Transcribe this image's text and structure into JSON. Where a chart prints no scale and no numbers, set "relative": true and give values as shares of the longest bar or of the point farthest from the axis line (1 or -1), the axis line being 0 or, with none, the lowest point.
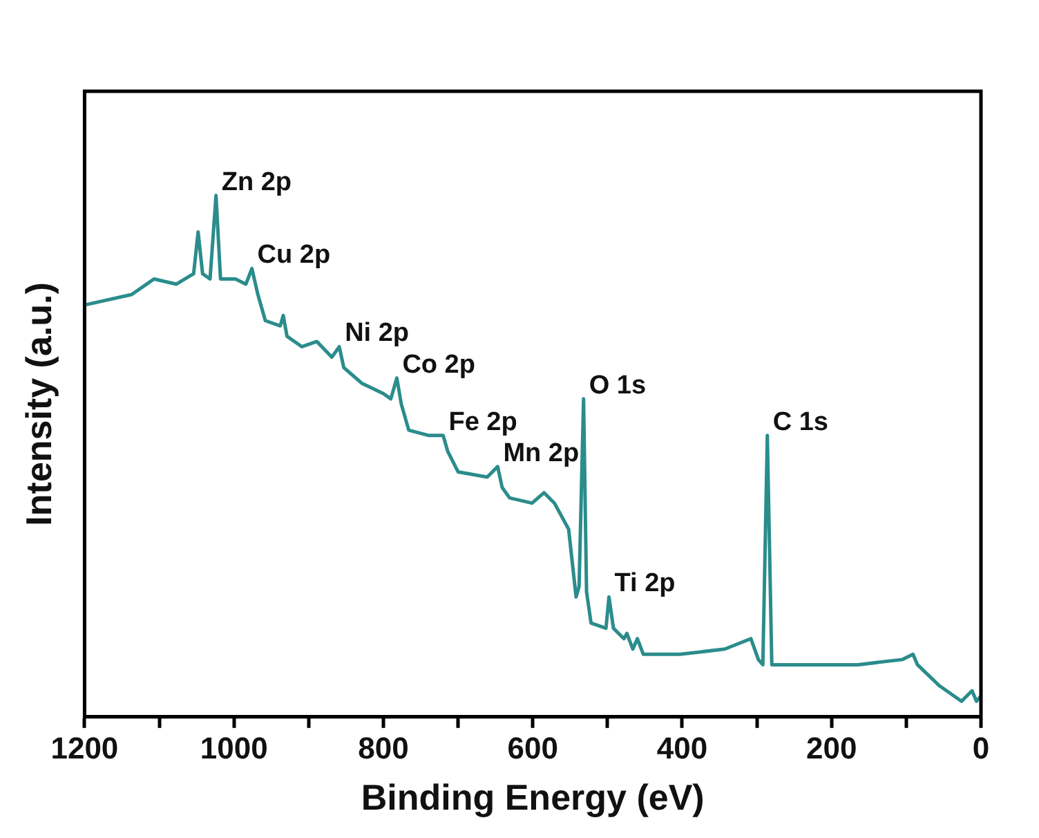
{
  "chart_data": {
    "type": "line",
    "xlabel": "Binding Energy (eV)",
    "ylabel": "Intensity (a.u.)",
    "relative": true,
    "tick_labels": "x",
    "grid": false,
    "legend": false,
    "marker": "none",
    "line_style": "solid",
    "xlim": [
      1200,
      0
    ],
    "xticks": [
      1200,
      {
        "value": 1100,
        "label": null
      },
      1000,
      {
        "value": 900,
        "label": null
      },
      800,
      {
        "value": 700,
        "label": null
      },
      600,
      {
        "value": 500,
        "label": null
      },
      400,
      {
        "value": 300,
        "label": null
      },
      200,
      {
        "value": 100,
        "label": null
      },
      0
    ],
    "series": [
      {
        "color": "#2b8c8c",
        "x": [
          1200,
          1137,
          1107,
          1077,
          1054,
          1048,
          1042,
          1032,
          1024,
          1018,
          998,
          984,
          976,
          968,
          958,
          938,
          934,
          929,
          909,
          889,
          869,
          859,
          853,
          829,
          800,
          790,
          782,
          776,
          766,
          740,
          720,
          714,
          700,
          661,
          647,
          641,
          631,
          601,
          585,
          571,
          552,
          542,
          538,
          532,
          528,
          522,
          502,
          498,
          492,
          478,
          474,
          466,
          460,
          452,
          403,
          343,
          308,
          298,
          292,
          286,
          280,
          244,
          165,
          105,
          91,
          85,
          56,
          26,
          12,
          6,
          0
        ],
        "values": [
          0.79,
          0.81,
          0.84,
          0.83,
          0.85,
          0.93,
          0.85,
          0.84,
          1.0,
          0.84,
          0.84,
          0.83,
          0.86,
          0.81,
          0.76,
          0.75,
          0.77,
          0.73,
          0.71,
          0.72,
          0.69,
          0.71,
          0.67,
          0.64,
          0.62,
          0.61,
          0.65,
          0.6,
          0.55,
          0.54,
          0.54,
          0.51,
          0.47,
          0.46,
          0.48,
          0.44,
          0.42,
          0.41,
          0.43,
          0.41,
          0.36,
          0.23,
          0.25,
          0.61,
          0.24,
          0.18,
          0.17,
          0.23,
          0.17,
          0.15,
          0.16,
          0.13,
          0.15,
          0.12,
          0.12,
          0.13,
          0.15,
          0.11,
          0.1,
          0.54,
          0.1,
          0.1,
          0.1,
          0.11,
          0.12,
          0.1,
          0.06,
          0.03,
          0.05,
          0.03,
          0.04
        ]
      }
    ],
    "annotations": [
      {
        "text": "Zn 2p",
        "x": 1024,
        "y": 1.0
      },
      {
        "text": "Cu 2p",
        "x": 976,
        "y": 0.86
      },
      {
        "text": "Ni 2p",
        "x": 859,
        "y": 0.71
      },
      {
        "text": "Co 2p",
        "x": 782,
        "y": 0.65
      },
      {
        "text": "Fe 2p",
        "x": 720,
        "y": 0.54
      },
      {
        "text": "Mn 2p",
        "x": 647,
        "y": 0.48
      },
      {
        "text": "O 1s",
        "x": 532,
        "y": 0.61
      },
      {
        "text": "Ti 2p",
        "x": 498,
        "y": 0.23
      },
      {
        "text": "C 1s",
        "x": 286,
        "y": 0.54
      }
    ]
  }
}
